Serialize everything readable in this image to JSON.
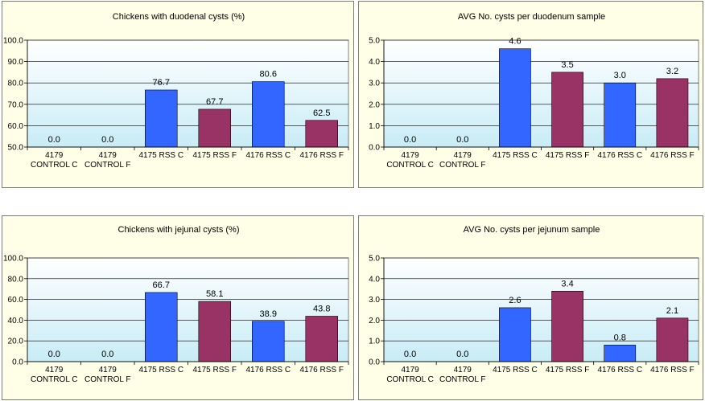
{
  "colors": {
    "blue": "#3366ff",
    "maroon": "#993366",
    "plot_top": "#ffffff",
    "plot_bottom": "#c8ecf6",
    "panel_bg": "#ffffe8"
  },
  "chart_data": [
    {
      "type": "bar",
      "title": "Chickens with duodenal cysts (%)",
      "categories": [
        [
          "4179",
          "CONTROL C"
        ],
        [
          "4179",
          "CONTROL F"
        ],
        [
          "4175 RSS C"
        ],
        [
          "4175 RSS F"
        ],
        [
          "4176 RSS C"
        ],
        [
          "4176 RSS F"
        ]
      ],
      "values": [
        0.0,
        0.0,
        76.7,
        67.7,
        80.6,
        62.5
      ],
      "data_labels": [
        "0.0",
        "0.0",
        "76.7",
        "67.7",
        "80.6",
        "62.5"
      ],
      "yticks": [
        "50.0",
        "60.0",
        "70.0",
        "80.0",
        "90.0",
        "100.0"
      ],
      "ylim": [
        50,
        100
      ],
      "bar_colors": [
        "blue",
        "maroon",
        "blue",
        "maroon",
        "blue",
        "maroon"
      ],
      "grid": true,
      "legend": "none"
    },
    {
      "type": "bar",
      "title": "AVG No. cysts per duodenum sample",
      "categories": [
        [
          "4179",
          "CONTROL C"
        ],
        [
          "4179",
          "CONTROL F"
        ],
        [
          "4175 RSS C"
        ],
        [
          "4175 RSS F"
        ],
        [
          "4176 RSS C"
        ],
        [
          "4176 RSS F"
        ]
      ],
      "values": [
        0.0,
        0.0,
        4.6,
        3.5,
        3.0,
        3.2
      ],
      "data_labels": [
        "0.0",
        "0.0",
        "4.6",
        "3.5",
        "3.0",
        "3.2"
      ],
      "yticks": [
        "0.0",
        "1.0",
        "2.0",
        "3.0",
        "4.0",
        "5.0"
      ],
      "ylim": [
        0,
        5
      ],
      "bar_colors": [
        "blue",
        "maroon",
        "blue",
        "maroon",
        "blue",
        "maroon"
      ],
      "grid": true,
      "legend": "none"
    },
    {
      "type": "bar",
      "title": "Chickens with jejunal cysts (%)",
      "categories": [
        [
          "4179",
          "CONTROL C"
        ],
        [
          "4179",
          "CONTROL F"
        ],
        [
          "4175 RSS C"
        ],
        [
          "4175 RSS F"
        ],
        [
          "4176 RSS C"
        ],
        [
          "4176 RSS F"
        ]
      ],
      "values": [
        0.0,
        0.0,
        66.7,
        58.1,
        38.9,
        43.8
      ],
      "data_labels": [
        "0.0",
        "0.0",
        "66.7",
        "58.1",
        "38.9",
        "43.8"
      ],
      "yticks": [
        "0.0",
        "20.0",
        "40.0",
        "60.0",
        "80.0",
        "100.0"
      ],
      "ylim": [
        0,
        100
      ],
      "bar_colors": [
        "blue",
        "maroon",
        "blue",
        "maroon",
        "blue",
        "maroon"
      ],
      "grid": true,
      "legend": "none"
    },
    {
      "type": "bar",
      "title": "AVG No. cysts per jejunum sample",
      "categories": [
        [
          "4179",
          "CONTROL C"
        ],
        [
          "4179",
          "CONTROL F"
        ],
        [
          "4175 RSS C"
        ],
        [
          "4175 RSS F"
        ],
        [
          "4176 RSS C"
        ],
        [
          "4176 RSS F"
        ]
      ],
      "values": [
        0.0,
        0.0,
        2.6,
        3.4,
        0.8,
        2.1
      ],
      "data_labels": [
        "0.0",
        "0.0",
        "2.6",
        "3.4",
        "0.8",
        "2.1"
      ],
      "yticks": [
        "0.0",
        "1.0",
        "2.0",
        "3.0",
        "4.0",
        "5.0"
      ],
      "ylim": [
        0,
        5
      ],
      "bar_colors": [
        "blue",
        "maroon",
        "blue",
        "maroon",
        "blue",
        "maroon"
      ],
      "grid": true,
      "legend": "none"
    }
  ]
}
